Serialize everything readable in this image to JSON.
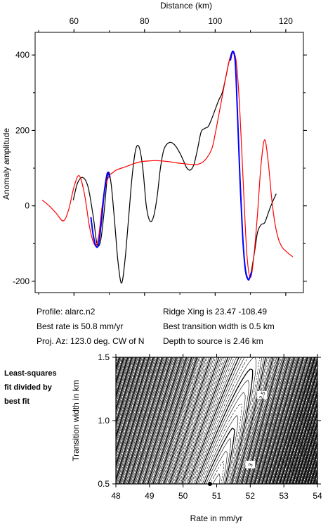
{
  "info": {
    "profile": "Profile: alarc.n2",
    "best_rate": "Best rate is 50.8 mm/yr",
    "proj_az": "Proj. Az: 123.0 deg. CW of N",
    "ridge_xing": "Ridge Xing is 23.47 -108.49",
    "best_width": "Best transition width is 0.5 km",
    "depth": "Depth to source is   2.46 km"
  },
  "note": {
    "line1": "Least-squares",
    "line2": "fit divided by",
    "line3": "best fit"
  },
  "chart_data": [
    {
      "type": "line",
      "xlabel": "Distance (km)",
      "ylabel": "Anomaly amplitude",
      "xlim": [
        49,
        125
      ],
      "ylim": [
        -230,
        460
      ],
      "xticks": [
        60,
        80,
        100,
        120
      ],
      "yticks": [
        -200,
        0,
        200,
        400
      ],
      "x_axis_position": "top",
      "grid": false,
      "series": [
        {
          "color": "#000000",
          "x": [
            59.8,
            61.0,
            62.5,
            64.0,
            65.5,
            66.5,
            67.5,
            68.5,
            69.6,
            70.5,
            71.5,
            72.5,
            73.5,
            74.5,
            75.5,
            76.5,
            77.5,
            78.5,
            79.5,
            80.5,
            81.5,
            82.5,
            83.5,
            84.5,
            85.5,
            87.0,
            88.5,
            90.0,
            91.0,
            92.0,
            93.0,
            94.0,
            95.0,
            96.0,
            97.0,
            98.0,
            99.0,
            100.0,
            101.0,
            102.0,
            103.0,
            104.0,
            105.0,
            105.7,
            106.3,
            107.0,
            107.8,
            108.5,
            109.3,
            110.0,
            110.5,
            111.2,
            112.0,
            113.0,
            114.0,
            115.0,
            116.0,
            117.3
          ],
          "y": [
            15,
            60,
            75,
            50,
            -30,
            -100,
            -95,
            -20,
            85,
            60,
            -40,
            -150,
            -205,
            -140,
            -30,
            80,
            150,
            155,
            100,
            0,
            -40,
            -30,
            20,
            100,
            150,
            168,
            162,
            140,
            120,
            100,
            95,
            110,
            150,
            195,
            205,
            210,
            230,
            255,
            280,
            300,
            340,
            385,
            410,
            380,
            250,
            80,
            -80,
            -170,
            -195,
            -185,
            -160,
            -120,
            -70,
            -50,
            -45,
            -20,
            5,
            32
          ]
        },
        {
          "color": "#ff0000",
          "x": [
            51.0,
            53.0,
            55.0,
            57.0,
            58.5,
            60.0,
            61.5,
            63.0,
            64.5,
            66.0,
            67.0,
            68.0,
            69.0,
            70.0,
            71.0,
            72.0,
            73.5,
            75.0,
            77.0,
            79.0,
            81.0,
            83.0,
            85.0,
            87.0,
            89.0,
            91.0,
            93.0,
            95.0,
            97.0,
            99.0,
            100.0,
            101.0,
            102.0,
            103.0,
            104.0,
            105.0,
            106.0,
            107.0,
            108.0,
            109.0,
            110.0,
            111.0,
            112.0,
            113.0,
            114.0,
            115.0,
            116.0,
            117.0,
            118.0,
            119.0,
            120.0,
            121.0,
            122.0
          ],
          "y": [
            15,
            0,
            -20,
            -40,
            -10,
            50,
            80,
            30,
            -60,
            -105,
            -80,
            0,
            55,
            80,
            88,
            95,
            100,
            105,
            112,
            117,
            119,
            120,
            119,
            117,
            114,
            112,
            110,
            110,
            120,
            150,
            190,
            240,
            290,
            340,
            385,
            405,
            380,
            250,
            50,
            -130,
            -190,
            -130,
            -20,
            110,
            175,
            120,
            20,
            -50,
            -90,
            -110,
            -120,
            -128,
            -135
          ]
        },
        {
          "color": "#0000ff",
          "x": [
            64.8,
            65.5,
            66.3,
            67.0,
            67.8,
            68.5,
            69.3,
            69.7,
            70.1
          ],
          "y": [
            -30,
            -80,
            -108,
            -100,
            -40,
            30,
            80,
            88,
            75
          ]
        },
        {
          "color": "#0000ff",
          "x": [
            104.3,
            105.0,
            105.7,
            106.3,
            107.0,
            107.8,
            108.5,
            109.3,
            109.8,
            110.3
          ],
          "y": [
            385,
            410,
            380,
            250,
            80,
            -80,
            -165,
            -195,
            -190,
            -175
          ]
        }
      ]
    },
    {
      "type": "contour",
      "xlabel": "Rate in mm/yr",
      "ylabel": "Transition width in km",
      "xlim": [
        48,
        54
      ],
      "ylim": [
        0.5,
        1.5
      ],
      "xticks": [
        48,
        49,
        50,
        51,
        52,
        53,
        54
      ],
      "yticks": [
        0.5,
        1.0,
        1.5
      ],
      "contour_labels": [
        {
          "text": "2.5",
          "x": 52.35,
          "y": 1.2
        },
        {
          "text": "3",
          "x": 52.0,
          "y": 0.65
        }
      ],
      "best_fit": {
        "rate": 50.8,
        "width": 0.5
      },
      "contour_color": "#000000"
    }
  ]
}
